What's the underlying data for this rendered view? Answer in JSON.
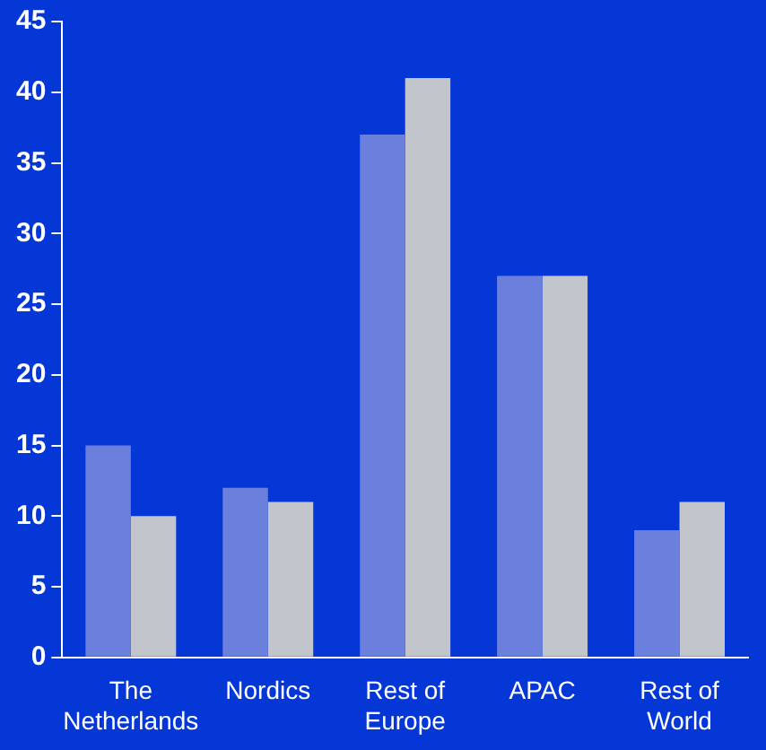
{
  "chart_data": {
    "type": "bar",
    "categories": [
      "The Netherlands",
      "Nordics",
      "Rest of Europe",
      "APAC",
      "Rest of World"
    ],
    "series": [
      {
        "color": "#6b80dc",
        "values": [
          15,
          12,
          37,
          27,
          9
        ]
      },
      {
        "color": "#c2c5cc",
        "values": [
          10,
          11,
          41,
          27,
          11
        ]
      }
    ],
    "ylim": [
      0,
      45
    ],
    "yticks": [
      0,
      5,
      10,
      15,
      20,
      25,
      30,
      35,
      40,
      45
    ],
    "grid": false,
    "legend": false
  }
}
